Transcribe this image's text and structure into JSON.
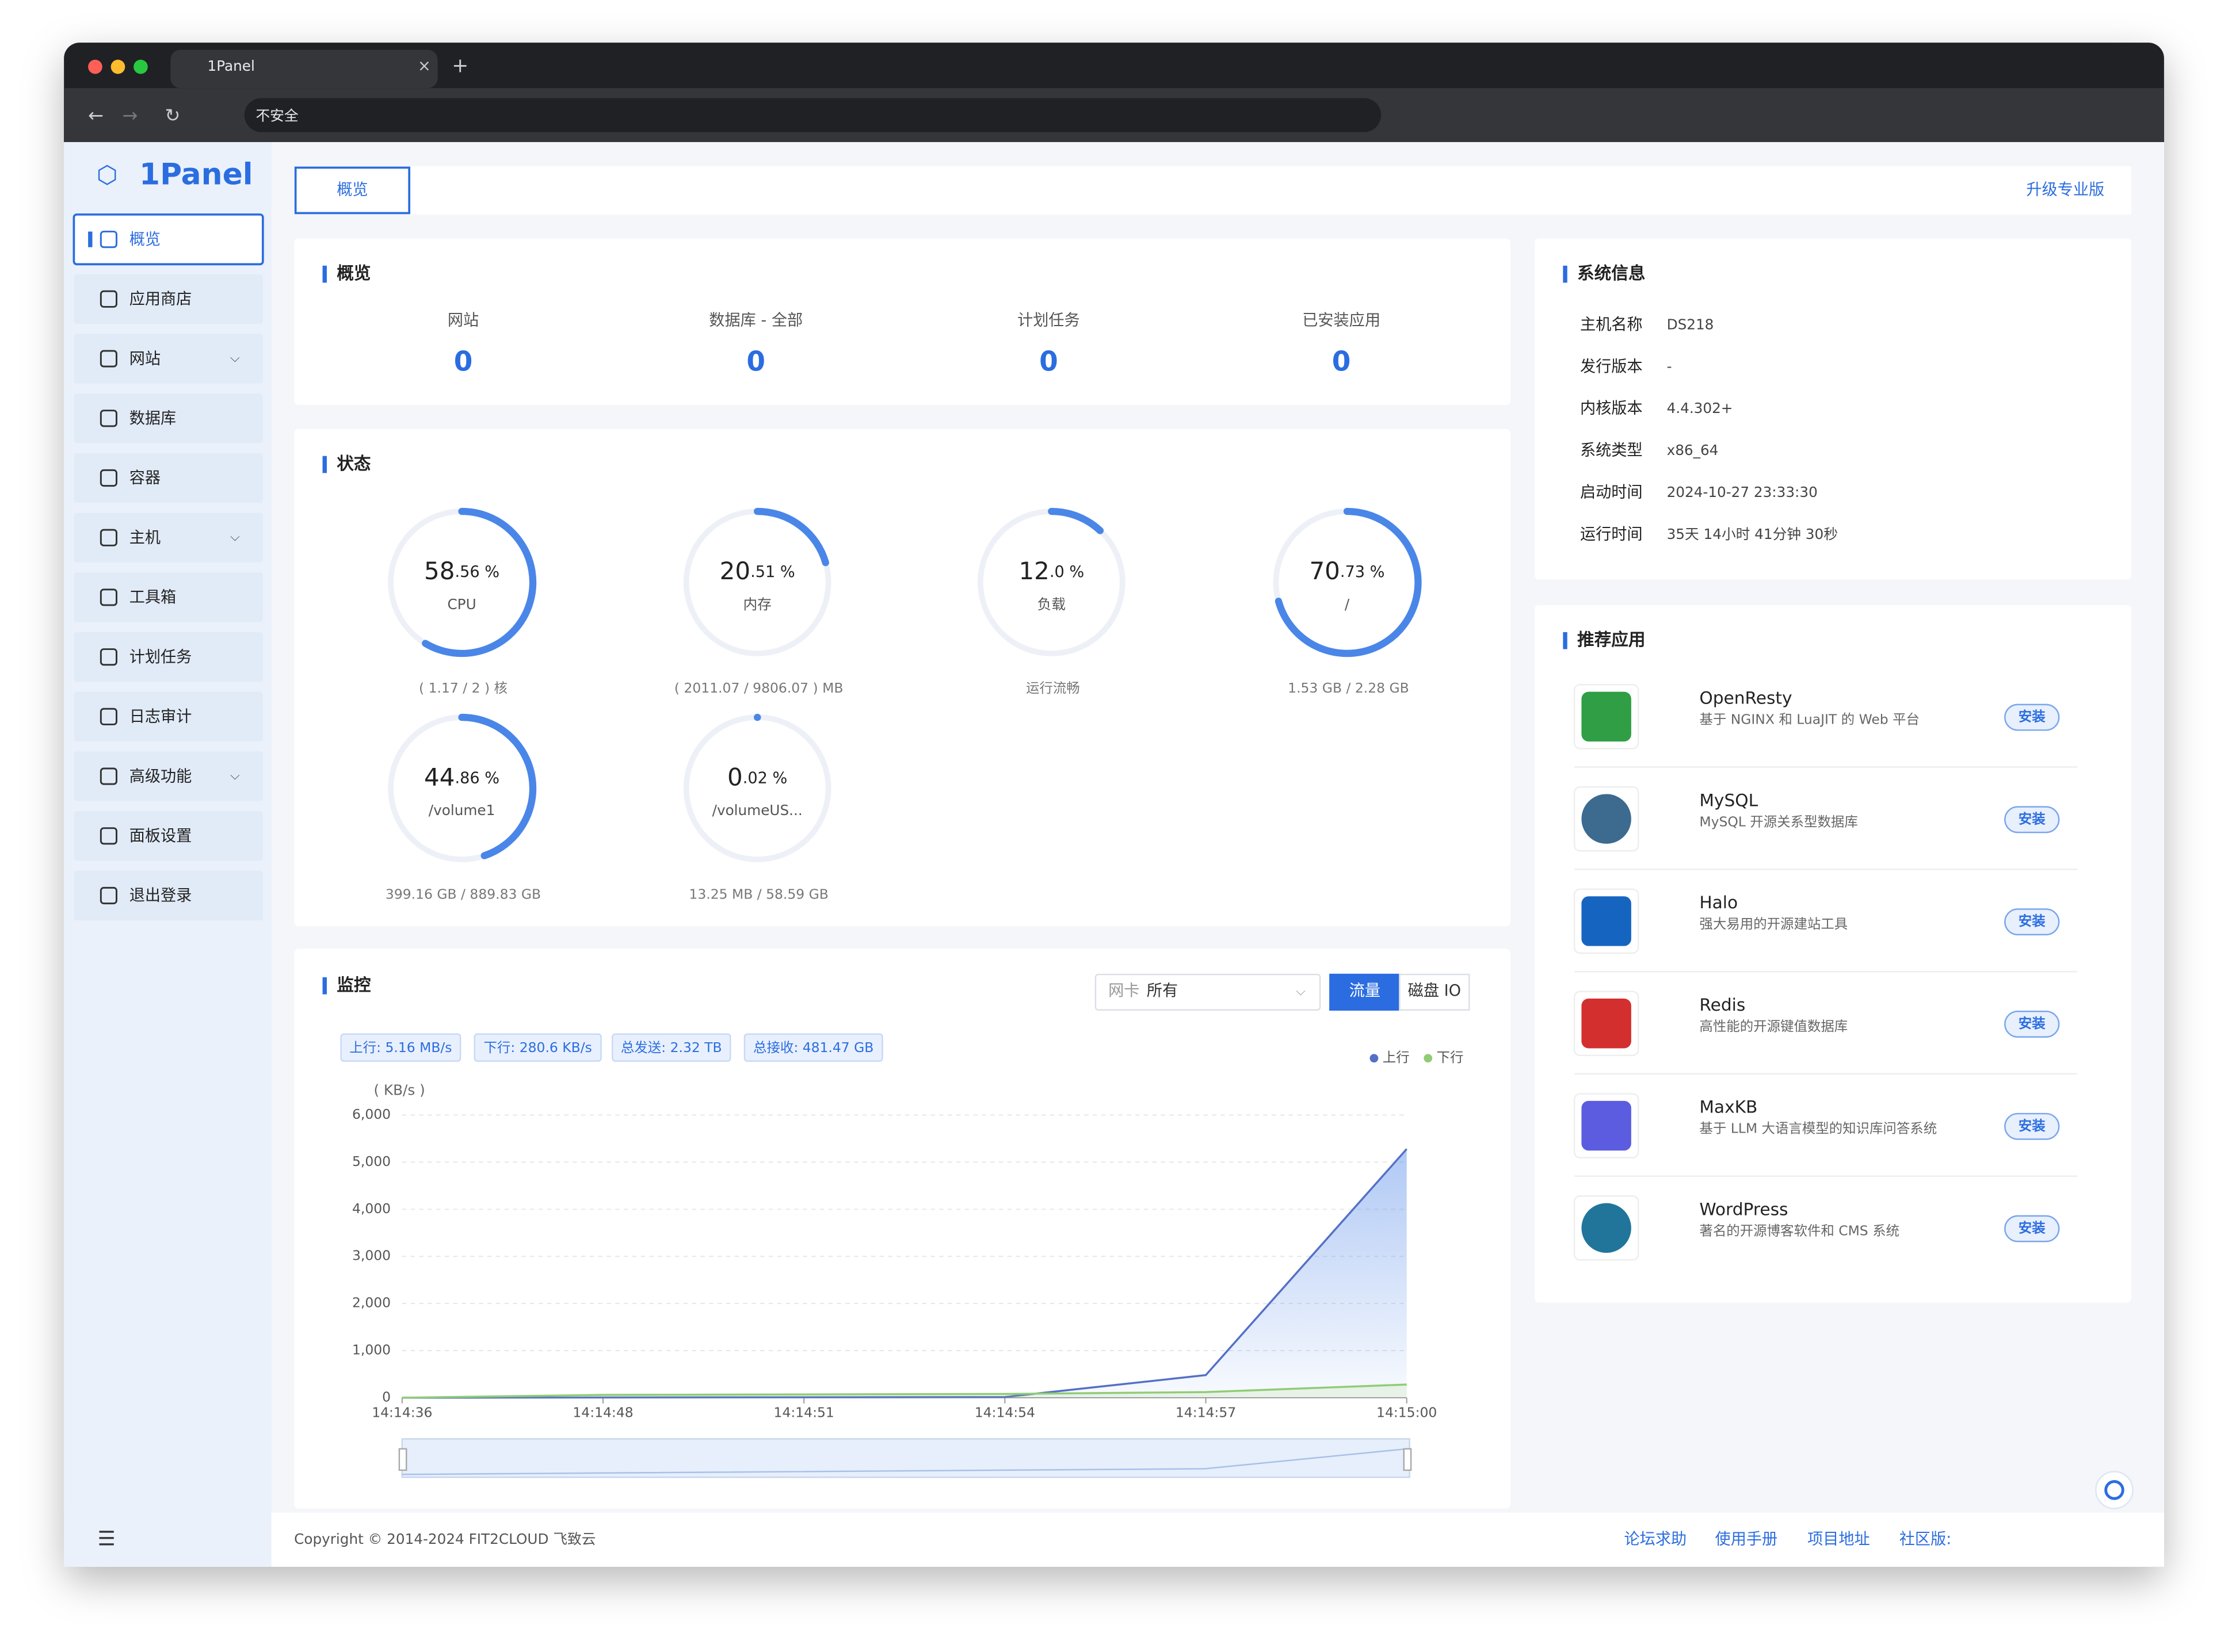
{
  "browser": {
    "tab_title": "1Panel",
    "security": "不安全"
  },
  "sidebar": {
    "logo": "1Panel",
    "menu": [
      "概览",
      "应用商店",
      "网站",
      "数据库",
      "容器",
      "主机",
      "工具箱",
      "计划任务",
      "日志审计",
      "高级功能",
      "面板设置",
      "退出登录"
    ]
  },
  "topbar": {
    "tab": "概览",
    "upgrade": "升级专业版"
  },
  "overview": {
    "title": "概览",
    "items": [
      {
        "label": "网站",
        "value": 0
      },
      {
        "label": "数据库 - 全部",
        "value": 0
      },
      {
        "label": "计划任务",
        "value": 0
      },
      {
        "label": "已安装应用",
        "value": 0
      }
    ]
  },
  "status": {
    "title": "状态",
    "gauges": [
      {
        "value": 58.56,
        "display": [
          "58",
          ".56 %"
        ],
        "label": "CPU",
        "detail": "( 1.17 / 2 ) 核"
      },
      {
        "value": 20.51,
        "display": [
          "20",
          ".51 %"
        ],
        "label": "内存",
        "detail": "( 2011.07 / 9806.07 ) MB"
      },
      {
        "value": 12.0,
        "display": [
          "12",
          ".0 %"
        ],
        "label": "负载",
        "detail": "运行流畅"
      },
      {
        "value": 70.73,
        "display": [
          "70",
          ".73 %"
        ],
        "label": "/",
        "detail": "1.53 GB / 2.28 GB"
      },
      {
        "value": 44.86,
        "display": [
          "44",
          ".86 %"
        ],
        "label": "/volume1",
        "detail": "399.16 GB / 889.83 GB"
      },
      {
        "value": 0.02,
        "display": [
          "0",
          ".02 %"
        ],
        "label": "/volumeUS...",
        "detail": "13.25 MB / 58.59 GB"
      }
    ]
  },
  "monitor": {
    "title": "监控",
    "nic_label": "网卡",
    "nic_value": "所有",
    "buttons": [
      "流量",
      "磁盘 IO"
    ],
    "tags": [
      "上行: 5.16 MB/s",
      "下行: 280.6 KB/s",
      "总发送: 2.32 TB",
      "总接收: 481.47 GB"
    ],
    "chart": {
      "type": "line",
      "unit": "( KB/s )",
      "categories": [
        "14:14:36",
        "14:14:48",
        "14:14:51",
        "14:14:54",
        "14:14:57",
        "14:15:00"
      ],
      "series": [
        {
          "name": "上行",
          "color": "#5470c6",
          "values": [
            0,
            5,
            10,
            15,
            480,
            5280
          ]
        },
        {
          "name": "下行",
          "color": "#91cc75",
          "values": [
            0,
            60,
            70,
            80,
            120,
            280
          ]
        }
      ],
      "ylim": [
        0,
        6000
      ],
      "yticks": [
        0,
        {
          "value": 1000,
          "label": "1,000"
        },
        {
          "value": 2000,
          "label": "2,000"
        },
        {
          "value": 3000,
          "label": "3,000"
        },
        {
          "value": 4000,
          "label": "4,000"
        },
        {
          "value": 5000,
          "label": "5,000"
        },
        {
          "value": 6000,
          "label": "6,000"
        }
      ],
      "grid": true,
      "legend": "top-right"
    }
  },
  "sysinfo": {
    "title": "系统信息",
    "rows": [
      [
        "主机名称",
        "DS218"
      ],
      [
        "发行版本",
        "-"
      ],
      [
        "内核版本",
        "4.4.302+"
      ],
      [
        "系统类型",
        "x86_64"
      ],
      [
        "启动时间",
        "2024-10-27 23:33:30"
      ],
      [
        "运行时间",
        "35天 14小时 41分钟 30秒"
      ]
    ]
  },
  "apps": {
    "title": "推荐应用",
    "install": "安装",
    "items": [
      {
        "name": "OpenResty",
        "desc": "基于 NGINX 和 LuaJIT 的 Web 平台"
      },
      {
        "name": "MySQL",
        "desc": "MySQL 开源关系型数据库"
      },
      {
        "name": "Halo",
        "desc": "强大易用的开源建站工具"
      },
      {
        "name": "Redis",
        "desc": "高性能的开源键值数据库"
      },
      {
        "name": "MaxKB",
        "desc": "基于 LLM 大语言模型的知识库问答系统"
      },
      {
        "name": "WordPress",
        "desc": "著名的开源博客软件和 CMS 系统"
      }
    ]
  },
  "footer": {
    "copyright": "Copyright © 2014-2024 FIT2CLOUD 飞致云",
    "links": [
      "论坛求助",
      "使用手册",
      "项目地址",
      "社区版:"
    ]
  }
}
